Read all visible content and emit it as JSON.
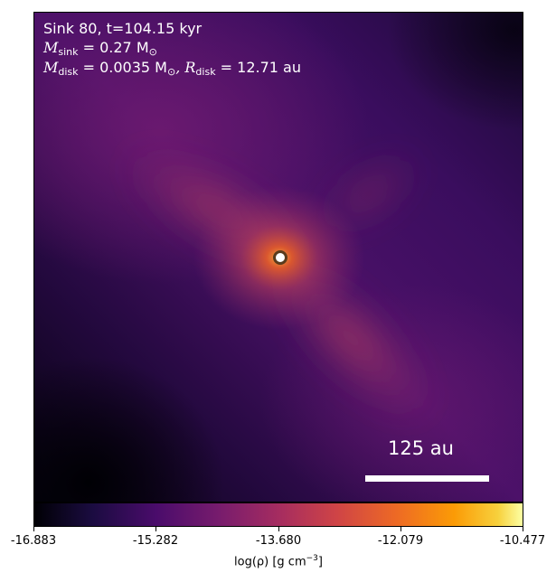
{
  "panel": {
    "title": "Sink 80, t=104.15 kyr",
    "sink_mass_label": "M",
    "sink_mass_sub": "sink",
    "sink_mass_value": " = 0.27 M",
    "disk_mass_label": "M",
    "disk_mass_sub": "disk",
    "disk_mass_value": " = 0.0035 M",
    "disk_radius_label": ", R",
    "disk_radius_sub": "disk",
    "disk_radius_value": " = 12.71 au",
    "sun_symbol": "⊙",
    "scale_bar_label": "125 au"
  },
  "colorbar": {
    "colormap": "inferno",
    "ticks": [
      "-16.883",
      "-15.282",
      "-13.680",
      "-12.079",
      "-10.477"
    ],
    "label": "log(ρ) [g cm",
    "label_exp": "−3",
    "label_end": "]"
  }
}
